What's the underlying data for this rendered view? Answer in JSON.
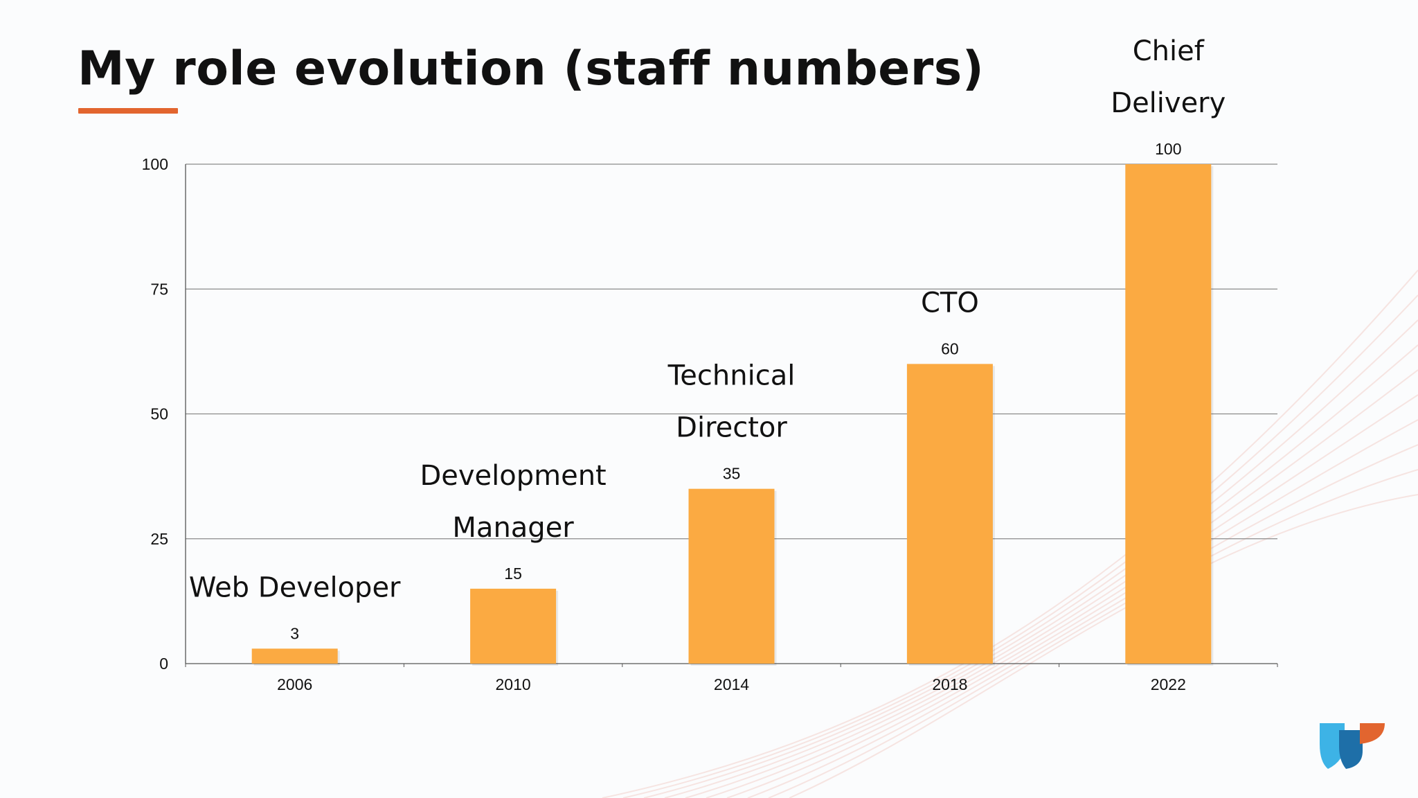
{
  "slide": {
    "title": "My role evolution (staff numbers)",
    "accent_color": "#e2652f"
  },
  "chart_data": {
    "type": "bar",
    "categories": [
      "2006",
      "2010",
      "2014",
      "2018",
      "2022"
    ],
    "values": [
      3,
      15,
      35,
      60,
      100
    ],
    "data_labels": [
      "3",
      "15",
      "35",
      "60",
      "100"
    ],
    "role_annotations": [
      [
        "Web Developer"
      ],
      [
        "Development",
        "Manager"
      ],
      [
        "Technical",
        "Director"
      ],
      [
        "CTO"
      ],
      [
        "Chief",
        "Delivery"
      ]
    ],
    "ylim": [
      0,
      100
    ],
    "yticks": [
      "0",
      "25",
      "50",
      "75",
      "100"
    ],
    "ytick_values": [
      0,
      25,
      50,
      75,
      100
    ],
    "grid": true,
    "bar_color": "#fbaa42",
    "xlabel": "",
    "ylabel": ""
  },
  "logo": {
    "icon": "company-logo-icon"
  }
}
